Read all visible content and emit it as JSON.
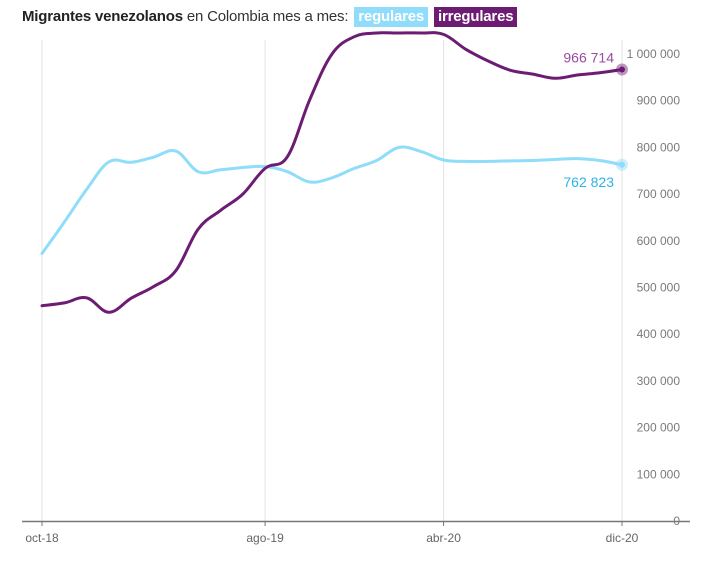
{
  "title": {
    "bold": "Migrantes venezolanos",
    "rest": " en Colombia mes a mes:",
    "legend_regular": "regulares",
    "legend_irregular": "irregulares"
  },
  "colors": {
    "regular": "#8fdcfb",
    "regular_label": "#2bb4e6",
    "irregular": "#6c1c73",
    "irregular_label": "#9c4aa3",
    "grid": "#e3e3e3",
    "axis": "#777777"
  },
  "chart_data": {
    "type": "line",
    "title": "Migrantes venezolanos en Colombia mes a mes: regulares irregulares",
    "x_tick_labels": [
      "oct-18",
      "ago-19",
      "abr-20",
      "dic-20"
    ],
    "x_tick_indices": [
      0,
      10,
      18,
      26
    ],
    "y_ticks": [
      0,
      100000,
      200000,
      300000,
      400000,
      500000,
      600000,
      700000,
      800000,
      900000,
      1000000
    ],
    "y_tick_labels": [
      "0",
      "100 000",
      "200 000",
      "300 000",
      "400 000",
      "500 000",
      "600 000",
      "700 000",
      "800 000",
      "900 000",
      "1 000 000"
    ],
    "ylim": [
      0,
      1000000
    ],
    "x_count": 27,
    "series": [
      {
        "name": "regulares",
        "values": [
          573000,
          640000,
          710000,
          769000,
          768000,
          779000,
          792000,
          748000,
          752000,
          757000,
          759000,
          748000,
          726000,
          735000,
          755000,
          772000,
          800000,
          791000,
          773000,
          770000,
          770000,
          771000,
          772000,
          774000,
          776000,
          772000,
          762823
        ],
        "end_label": "762 823"
      },
      {
        "name": "irregulares",
        "values": [
          461000,
          467000,
          478000,
          447000,
          477000,
          502000,
          536000,
          625000,
          665000,
          700000,
          755000,
          780000,
          902000,
          1000000,
          1037000,
          1045000,
          1045000,
          1045000,
          1042000,
          1010000,
          985000,
          965000,
          957000,
          948000,
          955000,
          960000,
          966714
        ],
        "end_label": "966 714"
      }
    ]
  }
}
